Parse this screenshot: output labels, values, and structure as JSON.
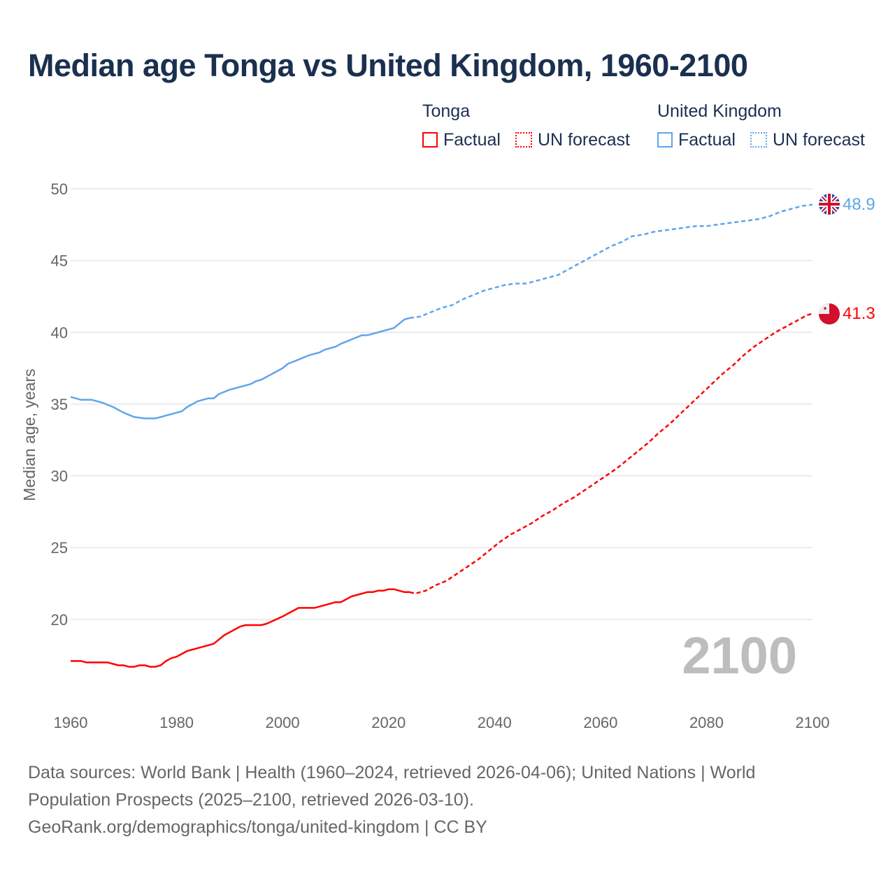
{
  "title": "Median age Tonga vs United Kingdom, 1960-2100",
  "legend": {
    "tonga": "Tonga",
    "uk": "United Kingdom",
    "factual": "Factual",
    "forecast": "UN forecast"
  },
  "colors": {
    "tonga": "#ff0000",
    "uk": "#5ea6ea"
  },
  "year_watermark": "2100",
  "footer": {
    "line1": "Data sources: World Bank | Health (1960–2024, retrieved 2026-04-06); United Nations | World",
    "line2": "Population Prospects (2025–2100, retrieved 2026-03-10).",
    "line3": "GeoRank.org/demographics/tonga/united-kingdom | CC BY"
  },
  "chart_data": {
    "type": "line",
    "title": "Median age Tonga vs United Kingdom, 1960-2100",
    "xlabel": "",
    "ylabel": "Median age, years",
    "xlim": [
      1960,
      2100
    ],
    "ylim": [
      14,
      50
    ],
    "xticks": [
      "1960",
      "1980",
      "2000",
      "2020",
      "2040",
      "2060",
      "2080",
      "2100"
    ],
    "yticks": [
      "20",
      "25",
      "30",
      "35",
      "40",
      "45",
      "50"
    ],
    "grid": true,
    "legend": "top-right",
    "end_labels": {
      "uk": "48.9",
      "tonga": "41.3"
    },
    "series": [
      {
        "name": "United Kingdom",
        "kind": "factual",
        "color": "#5ea6ea",
        "points": [
          [
            1960,
            35.5
          ],
          [
            1962,
            35.3
          ],
          [
            1964,
            35.3
          ],
          [
            1966,
            35.1
          ],
          [
            1968,
            34.8
          ],
          [
            1970,
            34.4
          ],
          [
            1972,
            34.1
          ],
          [
            1974,
            34.0
          ],
          [
            1976,
            34.0
          ],
          [
            1978,
            34.2
          ],
          [
            1980,
            34.4
          ],
          [
            1981,
            34.5
          ],
          [
            1982,
            34.8
          ],
          [
            1984,
            35.2
          ],
          [
            1986,
            35.4
          ],
          [
            1987,
            35.4
          ],
          [
            1988,
            35.7
          ],
          [
            1990,
            36.0
          ],
          [
            1992,
            36.2
          ],
          [
            1994,
            36.4
          ],
          [
            1995,
            36.6
          ],
          [
            1996,
            36.7
          ],
          [
            1998,
            37.1
          ],
          [
            2000,
            37.5
          ],
          [
            2001,
            37.8
          ],
          [
            2003,
            38.1
          ],
          [
            2005,
            38.4
          ],
          [
            2007,
            38.6
          ],
          [
            2008,
            38.8
          ],
          [
            2010,
            39.0
          ],
          [
            2011,
            39.2
          ],
          [
            2013,
            39.5
          ],
          [
            2015,
            39.8
          ],
          [
            2016,
            39.8
          ],
          [
            2018,
            40.0
          ],
          [
            2020,
            40.2
          ],
          [
            2021,
            40.3
          ],
          [
            2022,
            40.6
          ],
          [
            2023,
            40.9
          ],
          [
            2024,
            41.0
          ]
        ]
      },
      {
        "name": "United Kingdom",
        "kind": "forecast",
        "color": "#5ea6ea",
        "points": [
          [
            2024,
            41.0
          ],
          [
            2026,
            41.1
          ],
          [
            2028,
            41.4
          ],
          [
            2030,
            41.7
          ],
          [
            2032,
            41.9
          ],
          [
            2034,
            42.3
          ],
          [
            2036,
            42.6
          ],
          [
            2038,
            42.9
          ],
          [
            2040,
            43.1
          ],
          [
            2042,
            43.3
          ],
          [
            2044,
            43.4
          ],
          [
            2046,
            43.4
          ],
          [
            2048,
            43.6
          ],
          [
            2050,
            43.8
          ],
          [
            2052,
            44.0
          ],
          [
            2054,
            44.4
          ],
          [
            2056,
            44.8
          ],
          [
            2058,
            45.2
          ],
          [
            2060,
            45.6
          ],
          [
            2062,
            46.0
          ],
          [
            2064,
            46.3
          ],
          [
            2066,
            46.7
          ],
          [
            2068,
            46.8
          ],
          [
            2070,
            47.0
          ],
          [
            2072,
            47.1
          ],
          [
            2074,
            47.2
          ],
          [
            2076,
            47.3
          ],
          [
            2078,
            47.4
          ],
          [
            2080,
            47.4
          ],
          [
            2082,
            47.5
          ],
          [
            2084,
            47.6
          ],
          [
            2086,
            47.7
          ],
          [
            2088,
            47.8
          ],
          [
            2090,
            47.9
          ],
          [
            2092,
            48.1
          ],
          [
            2094,
            48.4
          ],
          [
            2096,
            48.6
          ],
          [
            2098,
            48.8
          ],
          [
            2100,
            48.9
          ]
        ]
      },
      {
        "name": "Tonga",
        "kind": "factual",
        "color": "#ff0000",
        "points": [
          [
            1960,
            17.1
          ],
          [
            1962,
            17.1
          ],
          [
            1963,
            17.0
          ],
          [
            1967,
            17.0
          ],
          [
            1969,
            16.8
          ],
          [
            1970,
            16.8
          ],
          [
            1971,
            16.7
          ],
          [
            1972,
            16.7
          ],
          [
            1973,
            16.8
          ],
          [
            1974,
            16.8
          ],
          [
            1975,
            16.7
          ],
          [
            1976,
            16.7
          ],
          [
            1977,
            16.8
          ],
          [
            1978,
            17.1
          ],
          [
            1979,
            17.3
          ],
          [
            1980,
            17.4
          ],
          [
            1982,
            17.8
          ],
          [
            1984,
            18.0
          ],
          [
            1986,
            18.2
          ],
          [
            1987,
            18.3
          ],
          [
            1989,
            18.9
          ],
          [
            1991,
            19.3
          ],
          [
            1992,
            19.5
          ],
          [
            1993,
            19.6
          ],
          [
            1996,
            19.6
          ],
          [
            1997,
            19.7
          ],
          [
            2000,
            20.2
          ],
          [
            2002,
            20.6
          ],
          [
            2003,
            20.8
          ],
          [
            2006,
            20.8
          ],
          [
            2007,
            20.9
          ],
          [
            2010,
            21.2
          ],
          [
            2011,
            21.2
          ],
          [
            2013,
            21.6
          ],
          [
            2016,
            21.9
          ],
          [
            2017,
            21.9
          ],
          [
            2018,
            22.0
          ],
          [
            2019,
            22.0
          ],
          [
            2020,
            22.1
          ],
          [
            2021,
            22.1
          ],
          [
            2023,
            21.9
          ],
          [
            2024,
            21.9
          ]
        ]
      },
      {
        "name": "Tonga",
        "kind": "forecast",
        "color": "#ff0000",
        "points": [
          [
            2024,
            21.9
          ],
          [
            2025,
            21.8
          ],
          [
            2027,
            22.0
          ],
          [
            2029,
            22.4
          ],
          [
            2031,
            22.7
          ],
          [
            2033,
            23.2
          ],
          [
            2035,
            23.7
          ],
          [
            2037,
            24.2
          ],
          [
            2039,
            24.8
          ],
          [
            2041,
            25.4
          ],
          [
            2043,
            25.9
          ],
          [
            2045,
            26.3
          ],
          [
            2047,
            26.7
          ],
          [
            2049,
            27.2
          ],
          [
            2051,
            27.6
          ],
          [
            2053,
            28.1
          ],
          [
            2055,
            28.5
          ],
          [
            2057,
            29.0
          ],
          [
            2059,
            29.5
          ],
          [
            2061,
            30.0
          ],
          [
            2063,
            30.5
          ],
          [
            2065,
            31.1
          ],
          [
            2067,
            31.7
          ],
          [
            2069,
            32.3
          ],
          [
            2071,
            33.0
          ],
          [
            2073,
            33.6
          ],
          [
            2075,
            34.3
          ],
          [
            2077,
            35.0
          ],
          [
            2079,
            35.7
          ],
          [
            2081,
            36.4
          ],
          [
            2083,
            37.1
          ],
          [
            2085,
            37.7
          ],
          [
            2087,
            38.4
          ],
          [
            2089,
            39.0
          ],
          [
            2091,
            39.5
          ],
          [
            2093,
            40.0
          ],
          [
            2095,
            40.4
          ],
          [
            2097,
            40.8
          ],
          [
            2099,
            41.2
          ],
          [
            2100,
            41.3
          ]
        ]
      }
    ]
  }
}
